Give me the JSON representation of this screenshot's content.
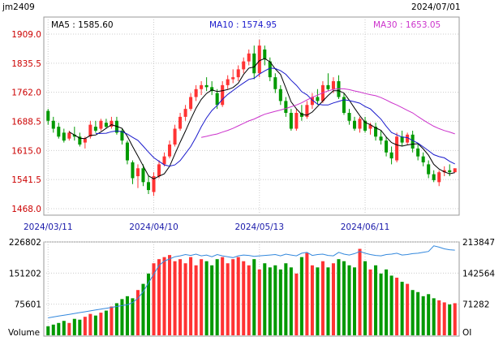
{
  "chart_data": [
    {
      "type": "candlestick",
      "symbol": "jm2409",
      "header_date": "2024/07/01",
      "ma": [
        {
          "label": "MA5 : 1585.60",
          "color": "#000000"
        },
        {
          "label": "MA10 : 1574.95",
          "color": "#1a1acc"
        },
        {
          "label": "MA30 : 1653.05",
          "color": "#cc33cc"
        }
      ],
      "ylim": [
        1468.0,
        1909.0
      ],
      "y_ticks": [
        "1909.0",
        "1835.5",
        "1762.0",
        "1688.5",
        "1615.0",
        "1541.5",
        "1468.0"
      ],
      "x_tick_labels": [
        "2024/03/11",
        "2024/04/10",
        "2024/05/13",
        "2024/06/11"
      ],
      "x_tick_index": [
        0,
        20,
        40,
        60
      ],
      "up_color": "#ff3333",
      "down_color": "#009900",
      "ohlc": [
        [
          1715,
          1720,
          1680,
          1690
        ],
        [
          1690,
          1700,
          1660,
          1670
        ],
        [
          1675,
          1685,
          1645,
          1650
        ],
        [
          1660,
          1670,
          1635,
          1640
        ],
        [
          1645,
          1665,
          1640,
          1660
        ],
        [
          1655,
          1675,
          1640,
          1650
        ],
        [
          1650,
          1660,
          1625,
          1630
        ],
        [
          1635,
          1650,
          1620,
          1645
        ],
        [
          1650,
          1690,
          1645,
          1680
        ],
        [
          1675,
          1690,
          1660,
          1665
        ],
        [
          1670,
          1695,
          1665,
          1690
        ],
        [
          1685,
          1695,
          1670,
          1675
        ],
        [
          1675,
          1700,
          1670,
          1690
        ],
        [
          1690,
          1700,
          1655,
          1660
        ],
        [
          1665,
          1670,
          1630,
          1640
        ],
        [
          1635,
          1640,
          1580,
          1590
        ],
        [
          1585,
          1590,
          1530,
          1545
        ],
        [
          1550,
          1580,
          1520,
          1570
        ],
        [
          1570,
          1580,
          1525,
          1535
        ],
        [
          1535,
          1550,
          1505,
          1515
        ],
        [
          1510,
          1560,
          1500,
          1550
        ],
        [
          1550,
          1590,
          1545,
          1580
        ],
        [
          1580,
          1610,
          1575,
          1600
        ],
        [
          1600,
          1640,
          1595,
          1630
        ],
        [
          1630,
          1680,
          1625,
          1670
        ],
        [
          1670,
          1710,
          1665,
          1700
        ],
        [
          1700,
          1730,
          1690,
          1720
        ],
        [
          1720,
          1760,
          1715,
          1750
        ],
        [
          1750,
          1780,
          1740,
          1770
        ],
        [
          1770,
          1790,
          1755,
          1780
        ],
        [
          1780,
          1800,
          1765,
          1775
        ],
        [
          1775,
          1790,
          1755,
          1765
        ],
        [
          1760,
          1770,
          1720,
          1730
        ],
        [
          1730,
          1790,
          1725,
          1780
        ],
        [
          1780,
          1805,
          1770,
          1795
        ],
        [
          1795,
          1820,
          1785,
          1800
        ],
        [
          1800,
          1830,
          1790,
          1820
        ],
        [
          1820,
          1850,
          1810,
          1840
        ],
        [
          1840,
          1870,
          1830,
          1860
        ],
        [
          1860,
          1880,
          1795,
          1810
        ],
        [
          1810,
          1895,
          1800,
          1880
        ],
        [
          1870,
          1880,
          1830,
          1845
        ],
        [
          1840,
          1850,
          1790,
          1800
        ],
        [
          1800,
          1810,
          1760,
          1770
        ],
        [
          1770,
          1780,
          1730,
          1740
        ],
        [
          1740,
          1750,
          1700,
          1710
        ],
        [
          1710,
          1720,
          1665,
          1670
        ],
        [
          1670,
          1720,
          1665,
          1710
        ],
        [
          1710,
          1730,
          1690,
          1700
        ],
        [
          1700,
          1740,
          1695,
          1730
        ],
        [
          1730,
          1760,
          1720,
          1750
        ],
        [
          1750,
          1770,
          1730,
          1740
        ],
        [
          1740,
          1790,
          1735,
          1780
        ],
        [
          1780,
          1810,
          1765,
          1770
        ],
        [
          1770,
          1800,
          1760,
          1790
        ],
        [
          1790,
          1805,
          1745,
          1750
        ],
        [
          1750,
          1760,
          1705,
          1710
        ],
        [
          1710,
          1720,
          1680,
          1690
        ],
        [
          1690,
          1700,
          1665,
          1670
        ],
        [
          1670,
          1700,
          1660,
          1695
        ],
        [
          1690,
          1700,
          1660,
          1665
        ],
        [
          1670,
          1685,
          1655,
          1680
        ],
        [
          1675,
          1685,
          1640,
          1650
        ],
        [
          1650,
          1665,
          1630,
          1640
        ],
        [
          1640,
          1650,
          1600,
          1610
        ],
        [
          1610,
          1625,
          1580,
          1595
        ],
        [
          1590,
          1660,
          1585,
          1650
        ],
        [
          1650,
          1665,
          1625,
          1635
        ],
        [
          1635,
          1660,
          1630,
          1655
        ],
        [
          1655,
          1665,
          1610,
          1620
        ],
        [
          1620,
          1630,
          1590,
          1600
        ],
        [
          1600,
          1610,
          1575,
          1585
        ],
        [
          1580,
          1590,
          1545,
          1555
        ],
        [
          1555,
          1565,
          1535,
          1540
        ],
        [
          1535,
          1565,
          1525,
          1560
        ],
        [
          1560,
          1575,
          1550,
          1565
        ],
        [
          1565,
          1580,
          1550,
          1560
        ],
        [
          1560,
          1570,
          1560,
          1570
        ]
      ]
    },
    {
      "type": "bar",
      "title": "Volume",
      "right_label": "OI",
      "ylim": [
        0,
        226802
      ],
      "y_ticks_left": [
        "226802",
        "151202",
        "75601"
      ],
      "y_ticks_right": [
        "213847",
        "142564",
        "71282"
      ],
      "oi_ylim": [
        0,
        213847
      ],
      "oi_color": "#3388dd",
      "volume": [
        22000,
        26000,
        30000,
        35000,
        30000,
        40000,
        38000,
        45000,
        52000,
        48000,
        55000,
        60000,
        70000,
        78000,
        88000,
        95000,
        90000,
        110000,
        125000,
        150000,
        175000,
        185000,
        190000,
        195000,
        180000,
        185000,
        175000,
        190000,
        170000,
        185000,
        180000,
        170000,
        185000,
        190000,
        175000,
        185000,
        190000,
        180000,
        170000,
        185000,
        160000,
        175000,
        165000,
        170000,
        160000,
        175000,
        165000,
        150000,
        190000,
        200000,
        170000,
        165000,
        180000,
        165000,
        175000,
        185000,
        180000,
        170000,
        165000,
        210000,
        180000,
        160000,
        170000,
        150000,
        160000,
        145000,
        140000,
        130000,
        125000,
        110000,
        105000,
        95000,
        100000,
        90000,
        85000,
        80000,
        75000,
        78000
      ],
      "open_interest": [
        40000,
        42000,
        44000,
        46000,
        48000,
        50000,
        52000,
        54000,
        56000,
        58000,
        60000,
        62000,
        64000,
        66000,
        68000,
        70000,
        75000,
        85000,
        100000,
        120000,
        140000,
        160000,
        170000,
        175000,
        180000,
        182000,
        185000,
        183000,
        186000,
        182000,
        184000,
        180000,
        185000,
        182000,
        180000,
        178000,
        182000,
        184000,
        183000,
        181000,
        182000,
        183000,
        184000,
        185000,
        182000,
        186000,
        184000,
        182000,
        188000,
        190000,
        183000,
        185000,
        186000,
        183000,
        182000,
        190000,
        186000,
        184000,
        187000,
        192000,
        188000,
        185000,
        183000,
        182000,
        185000,
        186000,
        188000,
        184000,
        185000,
        187000,
        188000,
        190000,
        192000,
        205000,
        202000,
        198000,
        196000,
        195000
      ]
    }
  ]
}
